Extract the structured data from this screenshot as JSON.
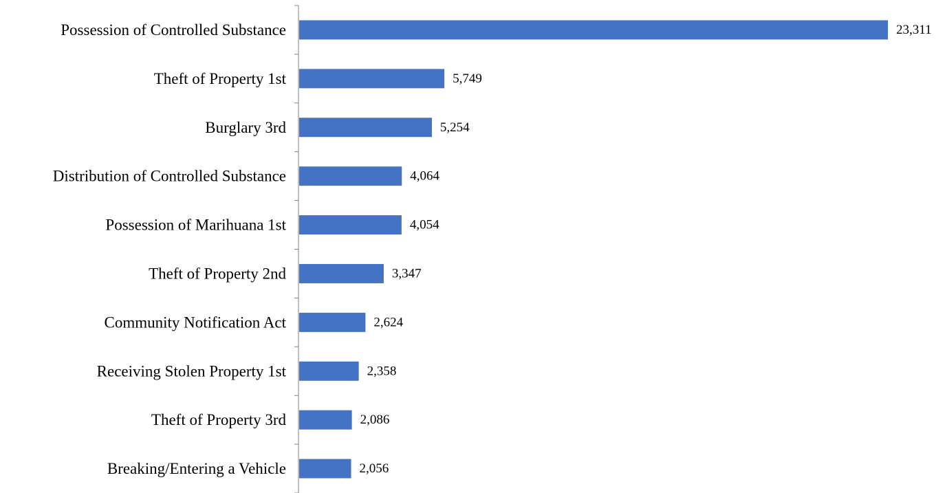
{
  "chart_data": {
    "type": "bar",
    "orientation": "horizontal",
    "categories": [
      "Possession of Controlled Substance",
      "Theft of Property 1st",
      "Burglary 3rd",
      "Distribution of Controlled Substance",
      "Possession of Marihuana 1st",
      "Theft of Property 2nd",
      "Community Notification Act",
      "Receiving Stolen Property 1st",
      "Theft of Property 3rd",
      "Breaking/Entering a Vehicle"
    ],
    "values": [
      23311,
      5749,
      5254,
      4064,
      4054,
      3347,
      2624,
      2358,
      2086,
      2056
    ],
    "value_labels": [
      "23,311",
      "5,749",
      "5,254",
      "4,064",
      "4,054",
      "3,347",
      "2,624",
      "2,358",
      "2,086",
      "2,056"
    ],
    "title": "",
    "xlabel": "",
    "ylabel": "",
    "xlim": [
      0,
      23311
    ],
    "grid": false,
    "legend": "none",
    "bar_color": "#4472C4"
  }
}
